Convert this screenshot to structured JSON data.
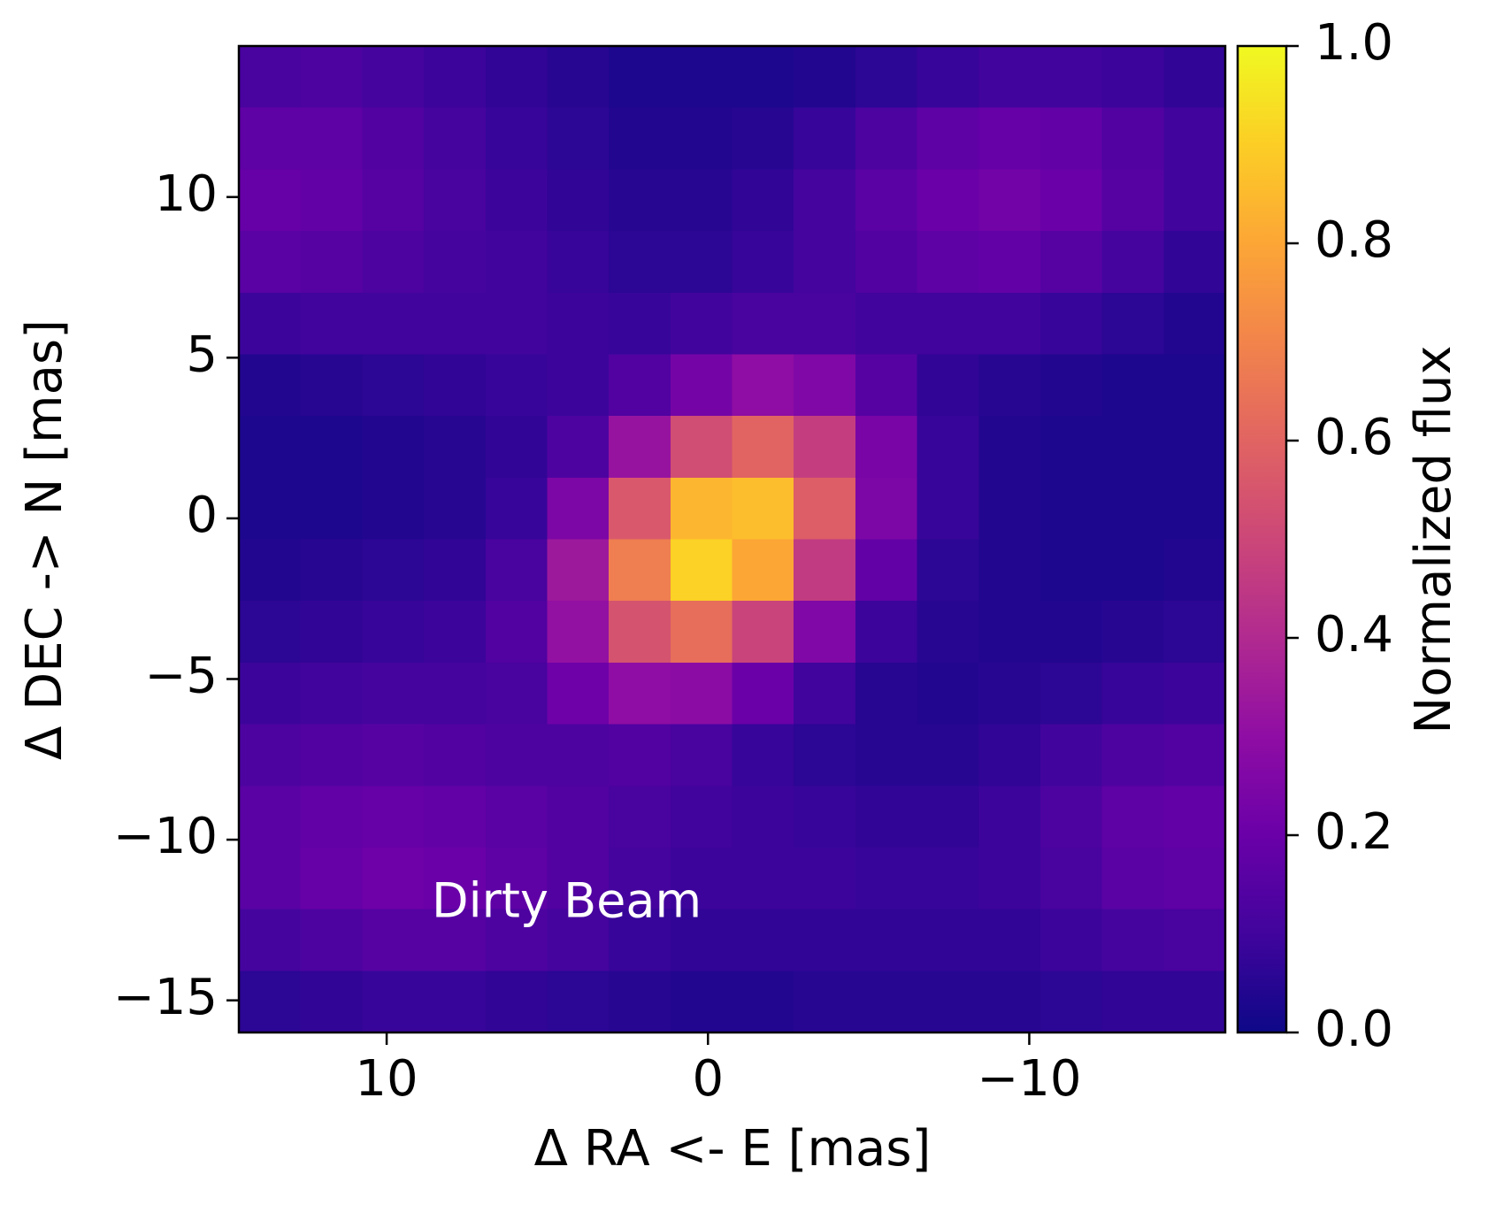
{
  "chart_data": {
    "type": "heatmap",
    "x_label": "Δ RA <- E [mas]",
    "y_label": "Δ DEC -> N [mas]",
    "colorbar_label": "Normalized flux",
    "annotation": "Dirty Beam",
    "colormap": "plasma",
    "xlim": [
      14.6,
      -16.1
    ],
    "ylim": [
      -16.0,
      14.7
    ],
    "clim": [
      0,
      1
    ],
    "xticks": [
      10,
      0,
      {
        "value": -10,
        "label": "−10"
      }
    ],
    "yticks": [
      {
        "value": -15,
        "label": "−15"
      },
      {
        "value": -10,
        "label": "−10"
      },
      {
        "value": -5,
        "label": "−5"
      },
      0,
      5,
      10
    ],
    "cticks": [
      {
        "value": 0,
        "label": "0.0"
      },
      0.2,
      0.4,
      0.6,
      0.8,
      {
        "value": 1,
        "label": "1.0"
      }
    ],
    "values": [
      [
        0.12,
        0.13,
        0.11,
        0.09,
        0.07,
        0.05,
        0.03,
        0.03,
        0.03,
        0.04,
        0.06,
        0.08,
        0.1,
        0.1,
        0.09,
        0.07
      ],
      [
        0.17,
        0.17,
        0.14,
        0.11,
        0.08,
        0.06,
        0.04,
        0.04,
        0.05,
        0.08,
        0.13,
        0.17,
        0.19,
        0.18,
        0.14,
        0.1
      ],
      [
        0.19,
        0.18,
        0.15,
        0.12,
        0.09,
        0.07,
        0.05,
        0.05,
        0.07,
        0.11,
        0.16,
        0.2,
        0.22,
        0.2,
        0.15,
        0.1
      ],
      [
        0.16,
        0.15,
        0.13,
        0.11,
        0.1,
        0.08,
        0.06,
        0.06,
        0.08,
        0.11,
        0.14,
        0.17,
        0.18,
        0.15,
        0.11,
        0.07
      ],
      [
        0.09,
        0.1,
        0.1,
        0.1,
        0.1,
        0.09,
        0.08,
        0.1,
        0.12,
        0.12,
        0.1,
        0.1,
        0.1,
        0.08,
        0.06,
        0.04
      ],
      [
        0.04,
        0.05,
        0.06,
        0.07,
        0.08,
        0.09,
        0.14,
        0.23,
        0.3,
        0.26,
        0.15,
        0.07,
        0.05,
        0.04,
        0.03,
        0.03
      ],
      [
        0.03,
        0.03,
        0.04,
        0.05,
        0.07,
        0.13,
        0.32,
        0.52,
        0.6,
        0.47,
        0.24,
        0.08,
        0.04,
        0.03,
        0.03,
        0.03
      ],
      [
        0.03,
        0.03,
        0.04,
        0.05,
        0.08,
        0.25,
        0.56,
        0.84,
        0.86,
        0.58,
        0.25,
        0.08,
        0.04,
        0.03,
        0.03,
        0.03
      ],
      [
        0.04,
        0.05,
        0.06,
        0.07,
        0.12,
        0.34,
        0.68,
        0.91,
        0.8,
        0.46,
        0.18,
        0.06,
        0.04,
        0.03,
        0.03,
        0.04
      ],
      [
        0.06,
        0.07,
        0.08,
        0.09,
        0.14,
        0.31,
        0.54,
        0.63,
        0.49,
        0.26,
        0.09,
        0.05,
        0.04,
        0.04,
        0.05,
        0.06
      ],
      [
        0.09,
        0.1,
        0.11,
        0.11,
        0.12,
        0.21,
        0.3,
        0.29,
        0.2,
        0.1,
        0.05,
        0.04,
        0.05,
        0.06,
        0.08,
        0.09
      ],
      [
        0.13,
        0.14,
        0.15,
        0.14,
        0.13,
        0.13,
        0.14,
        0.12,
        0.08,
        0.06,
        0.05,
        0.05,
        0.07,
        0.1,
        0.13,
        0.14
      ],
      [
        0.16,
        0.18,
        0.19,
        0.18,
        0.16,
        0.14,
        0.12,
        0.1,
        0.09,
        0.08,
        0.07,
        0.07,
        0.09,
        0.13,
        0.17,
        0.18
      ],
      [
        0.16,
        0.19,
        0.21,
        0.2,
        0.17,
        0.14,
        0.11,
        0.09,
        0.09,
        0.09,
        0.08,
        0.08,
        0.09,
        0.12,
        0.16,
        0.17
      ],
      [
        0.11,
        0.13,
        0.15,
        0.15,
        0.13,
        0.11,
        0.08,
        0.07,
        0.07,
        0.07,
        0.07,
        0.07,
        0.07,
        0.09,
        0.11,
        0.12
      ],
      [
        0.06,
        0.07,
        0.08,
        0.08,
        0.07,
        0.06,
        0.05,
        0.04,
        0.04,
        0.05,
        0.05,
        0.05,
        0.05,
        0.06,
        0.07,
        0.07
      ]
    ]
  }
}
